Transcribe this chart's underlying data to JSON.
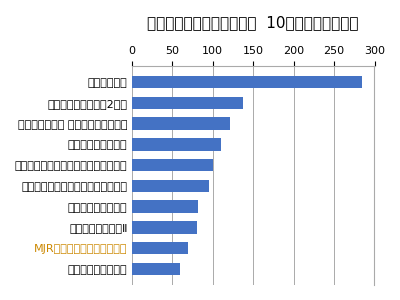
{
  "title": "福岡分譲マンションガイド  10月来場ベストテン",
  "categories": [
    "ザ・ライオンズ百道",
    "MJR大手門タワーレジデンス",
    "アンビール筑紫野Ⅱ",
    "アルバガーデン長尾",
    "ブライト・サンリヤン別府シールズ",
    "プレミスト千早タワーツインマークス",
    "ＭＪＲ新宮中央駅前",
    "アルバガーデン グランデージ大濠西",
    "パークホームズ桜坂2丁目",
    "ネクサス西新"
  ],
  "values": [
    60,
    70,
    80,
    82,
    95,
    100,
    110,
    122,
    138,
    285
  ],
  "bar_color": "#4472C4",
  "xlim": [
    0,
    300
  ],
  "xticks": [
    0,
    50,
    100,
    150,
    200,
    250,
    300
  ],
  "title_fontsize": 11,
  "label_fontsize": 8,
  "tick_fontsize": 8,
  "mjr_label_index": 1,
  "mjr_color": "#CC8800",
  "background_color": "#FFFFFF",
  "grid_color": "#AAAAAA"
}
